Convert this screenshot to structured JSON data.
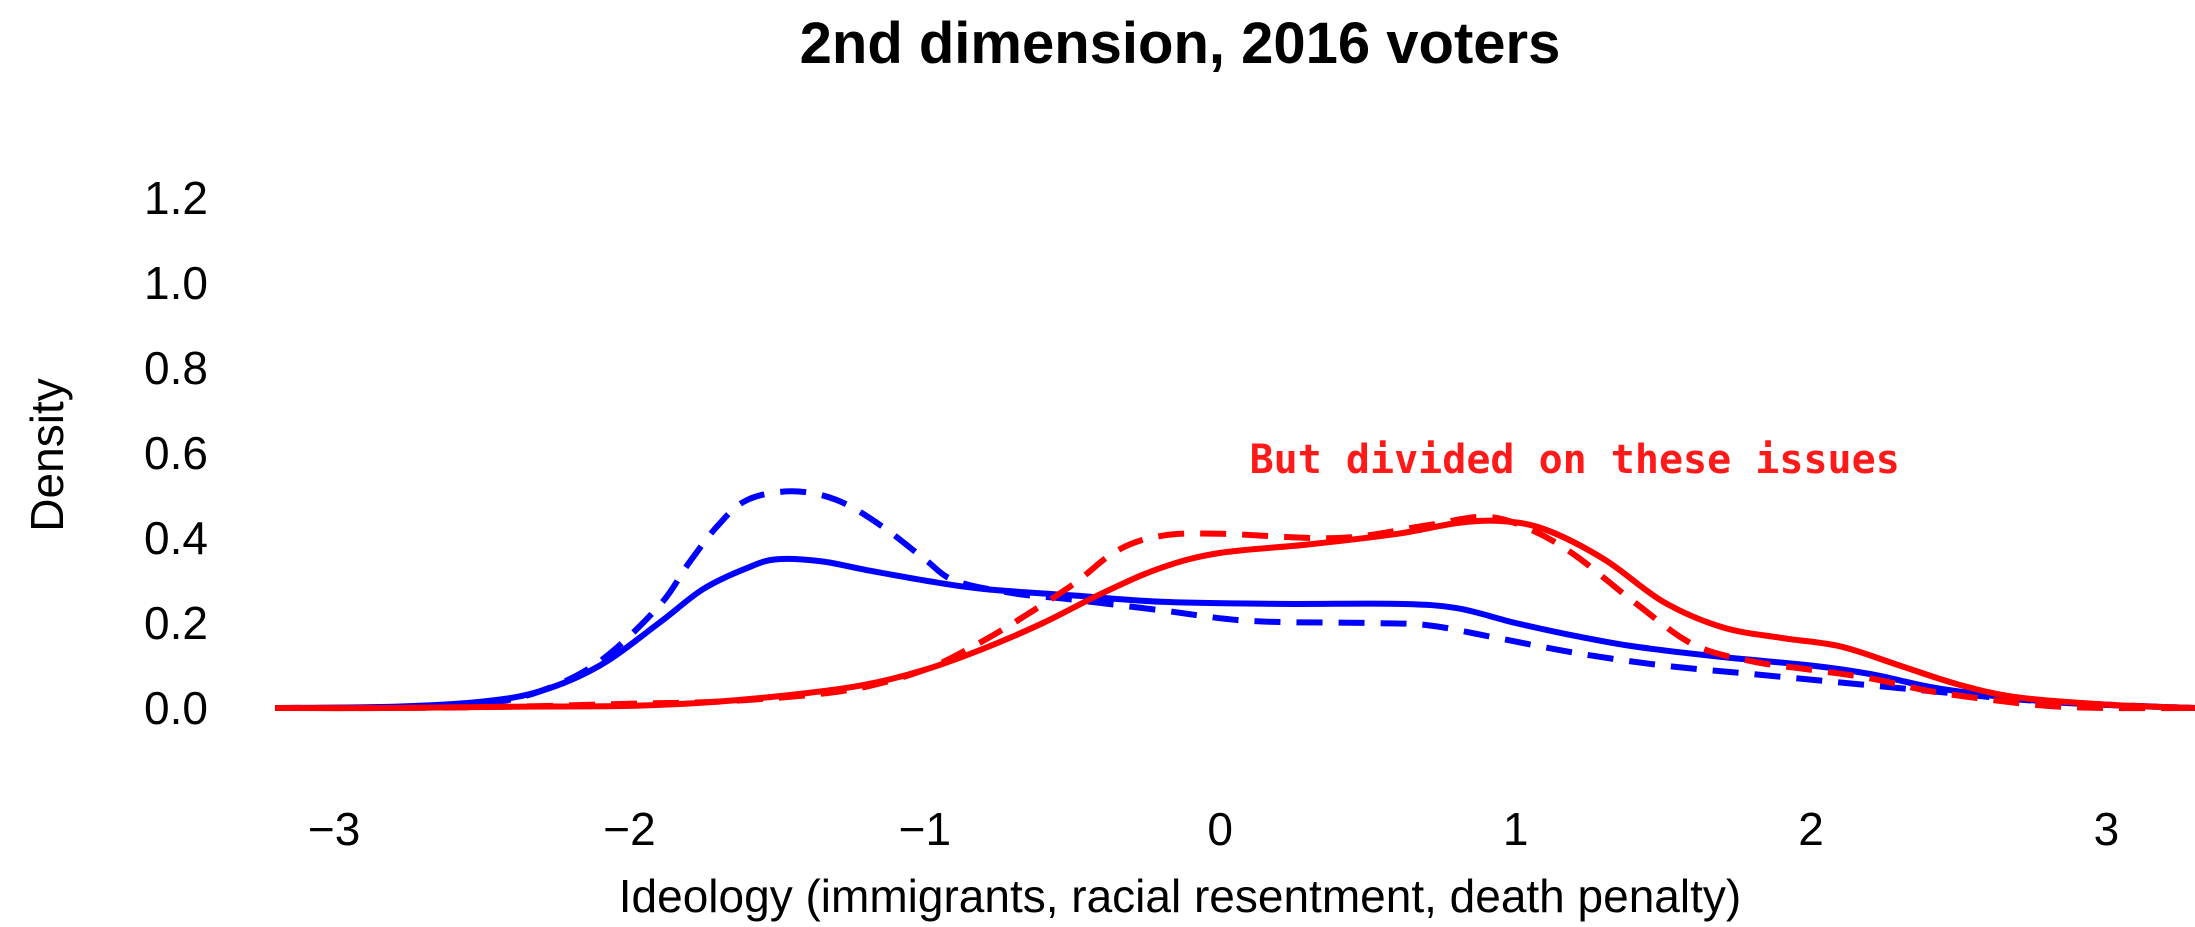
{
  "chart_data": {
    "type": "line",
    "title": "2nd dimension, 2016 voters",
    "xlabel": "Ideology (immigrants, racial resentment, death penalty)",
    "ylabel": "Density",
    "xlim": [
      -3.2,
      3.3
    ],
    "ylim": [
      0,
      1.2
    ],
    "x_ticks": [
      "−3",
      "−2",
      "−1",
      "0",
      "1",
      "2",
      "3"
    ],
    "x_tick_values": [
      -3,
      -2,
      -1,
      0,
      1,
      2,
      3
    ],
    "y_ticks": [
      "0.0",
      "0.2",
      "0.4",
      "0.6",
      "0.8",
      "1.0",
      "1.2"
    ],
    "y_tick_values": [
      0,
      0.2,
      0.4,
      0.6,
      0.8,
      1.0,
      1.2
    ],
    "grid": false,
    "annotation": {
      "text": "But divided on these issues",
      "color": "#ff1a1a",
      "x": 1.2,
      "y": 0.6
    },
    "series": [
      {
        "color": "#0000ff",
        "style": "solid",
        "points": [
          [
            -3.2,
            0.0
          ],
          [
            -2.8,
            0.003
          ],
          [
            -2.5,
            0.015
          ],
          [
            -2.3,
            0.04
          ],
          [
            -2.1,
            0.1
          ],
          [
            -1.9,
            0.2
          ],
          [
            -1.75,
            0.28
          ],
          [
            -1.6,
            0.33
          ],
          [
            -1.5,
            0.35
          ],
          [
            -1.35,
            0.345
          ],
          [
            -1.2,
            0.325
          ],
          [
            -1.0,
            0.3
          ],
          [
            -0.8,
            0.28
          ],
          [
            -0.5,
            0.265
          ],
          [
            -0.2,
            0.25
          ],
          [
            0.2,
            0.245
          ],
          [
            0.6,
            0.245
          ],
          [
            0.8,
            0.235
          ],
          [
            1.0,
            0.2
          ],
          [
            1.2,
            0.17
          ],
          [
            1.4,
            0.145
          ],
          [
            1.7,
            0.12
          ],
          [
            2.0,
            0.1
          ],
          [
            2.2,
            0.08
          ],
          [
            2.4,
            0.05
          ],
          [
            2.6,
            0.03
          ],
          [
            2.8,
            0.015
          ],
          [
            3.0,
            0.007
          ],
          [
            3.3,
            0.0
          ]
        ]
      },
      {
        "color": "#0000ff",
        "style": "dashed",
        "points": [
          [
            -3.2,
            0.0
          ],
          [
            -2.8,
            0.002
          ],
          [
            -2.5,
            0.01
          ],
          [
            -2.3,
            0.04
          ],
          [
            -2.1,
            0.11
          ],
          [
            -1.9,
            0.24
          ],
          [
            -1.8,
            0.34
          ],
          [
            -1.7,
            0.43
          ],
          [
            -1.6,
            0.49
          ],
          [
            -1.45,
            0.51
          ],
          [
            -1.3,
            0.49
          ],
          [
            -1.15,
            0.43
          ],
          [
            -1.0,
            0.35
          ],
          [
            -0.9,
            0.3
          ],
          [
            -0.7,
            0.27
          ],
          [
            -0.5,
            0.255
          ],
          [
            -0.2,
            0.23
          ],
          [
            0.1,
            0.205
          ],
          [
            0.5,
            0.2
          ],
          [
            0.7,
            0.195
          ],
          [
            0.9,
            0.17
          ],
          [
            1.2,
            0.13
          ],
          [
            1.5,
            0.1
          ],
          [
            1.8,
            0.08
          ],
          [
            2.1,
            0.06
          ],
          [
            2.4,
            0.04
          ],
          [
            2.7,
            0.02
          ],
          [
            3.0,
            0.008
          ],
          [
            3.3,
            0.0
          ]
        ]
      },
      {
        "color": "#ff0000",
        "style": "solid",
        "points": [
          [
            -3.2,
            0.0
          ],
          [
            -2.8,
            0.0
          ],
          [
            -2.4,
            0.003
          ],
          [
            -2.0,
            0.005
          ],
          [
            -1.7,
            0.015
          ],
          [
            -1.4,
            0.035
          ],
          [
            -1.2,
            0.055
          ],
          [
            -1.0,
            0.09
          ],
          [
            -0.8,
            0.14
          ],
          [
            -0.6,
            0.2
          ],
          [
            -0.4,
            0.27
          ],
          [
            -0.2,
            0.33
          ],
          [
            0.0,
            0.365
          ],
          [
            0.3,
            0.385
          ],
          [
            0.6,
            0.41
          ],
          [
            0.8,
            0.435
          ],
          [
            0.95,
            0.44
          ],
          [
            1.1,
            0.42
          ],
          [
            1.3,
            0.35
          ],
          [
            1.5,
            0.25
          ],
          [
            1.7,
            0.19
          ],
          [
            1.9,
            0.165
          ],
          [
            2.1,
            0.145
          ],
          [
            2.3,
            0.1
          ],
          [
            2.5,
            0.055
          ],
          [
            2.7,
            0.025
          ],
          [
            3.0,
            0.008
          ],
          [
            3.3,
            0.0
          ]
        ]
      },
      {
        "color": "#ff0000",
        "style": "dashed",
        "points": [
          [
            -3.2,
            0.0
          ],
          [
            -2.8,
            0.0
          ],
          [
            -2.4,
            0.003
          ],
          [
            -2.0,
            0.01
          ],
          [
            -1.7,
            0.015
          ],
          [
            -1.4,
            0.03
          ],
          [
            -1.2,
            0.05
          ],
          [
            -1.0,
            0.09
          ],
          [
            -0.85,
            0.14
          ],
          [
            -0.7,
            0.2
          ],
          [
            -0.5,
            0.29
          ],
          [
            -0.35,
            0.37
          ],
          [
            -0.2,
            0.405
          ],
          [
            0.0,
            0.41
          ],
          [
            0.4,
            0.4
          ],
          [
            0.7,
            0.43
          ],
          [
            0.9,
            0.45
          ],
          [
            1.05,
            0.42
          ],
          [
            1.2,
            0.36
          ],
          [
            1.4,
            0.25
          ],
          [
            1.6,
            0.15
          ],
          [
            1.8,
            0.11
          ],
          [
            2.0,
            0.09
          ],
          [
            2.2,
            0.07
          ],
          [
            2.4,
            0.04
          ],
          [
            2.6,
            0.02
          ],
          [
            2.8,
            0.005
          ],
          [
            3.0,
            0.0
          ],
          [
            3.3,
            0.0
          ]
        ]
      }
    ]
  }
}
